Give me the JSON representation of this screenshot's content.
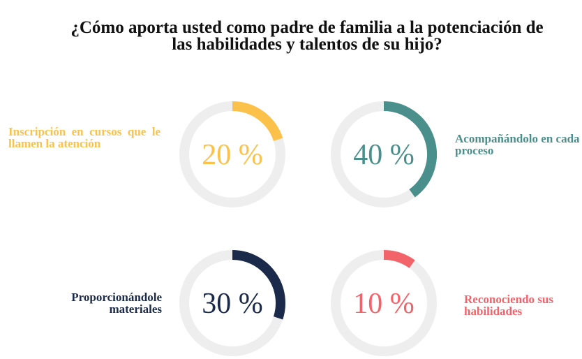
{
  "title": "¿Cómo aporta usted como padre de familia a la potenciación de las habilidades y talentos de su hijo?",
  "chart_data": [
    {
      "type": "donut",
      "label": "Inscripción en cursos que le llamen la atención",
      "values": [
        20
      ],
      "value_labels": [
        "20 %"
      ],
      "color": "#fcc14a"
    },
    {
      "type": "donut",
      "label": "Acompañándolo en cada proceso",
      "values": [
        40
      ],
      "value_labels": [
        "40 %"
      ],
      "color": "#4a8f8b"
    },
    {
      "type": "donut",
      "label": "Proporcionándole materiales",
      "values": [
        30
      ],
      "value_labels": [
        "30 %"
      ],
      "color": "#1b2a4a"
    },
    {
      "type": "donut",
      "label": "Reconociendo sus habilidades",
      "values": [
        10
      ],
      "value_labels": [
        "10 %"
      ],
      "color": "#f2636a"
    }
  ]
}
